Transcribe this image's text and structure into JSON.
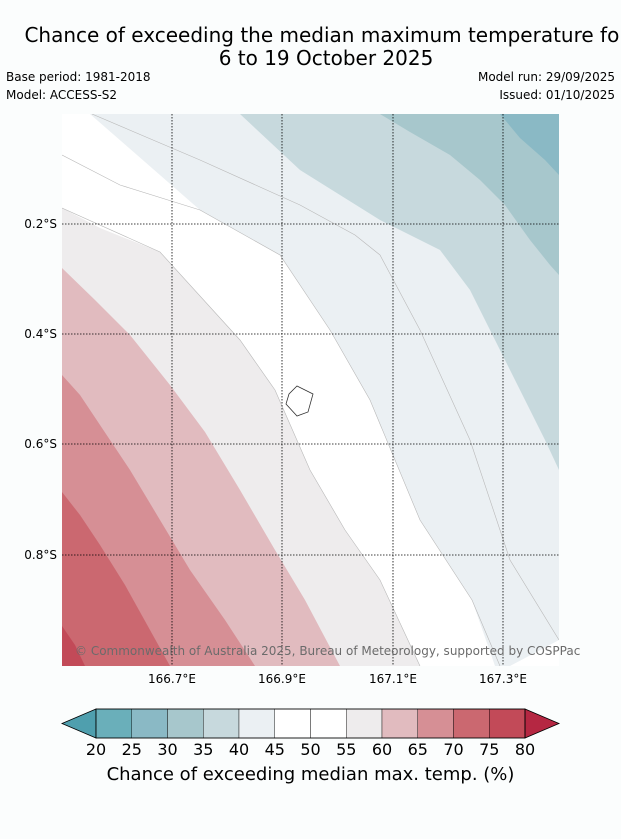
{
  "title": {
    "line1": "Chance of exceeding the median maximum temperature for",
    "line2": "6 to 19 October 2025"
  },
  "meta": {
    "base_period": "Base period: 1981-2018",
    "model": "Model: ACCESS-S2",
    "model_run": "Model run: 29/09/2025",
    "issued": "Issued: 01/10/2025"
  },
  "map": {
    "copyright": "© Commonwealth of Australia 2025, Bureau of Meteorology, supported by COSPPac",
    "lat_labels": [
      "0.2°S",
      "0.4°S",
      "0.6°S",
      "0.8°S"
    ],
    "lon_labels": [
      "166.7°E",
      "166.9°E",
      "167.1°E",
      "167.3°E"
    ],
    "extent": {
      "lon_min": 166.5,
      "lon_max": 167.4,
      "lat_min": -1.0,
      "lat_max": 0.0
    }
  },
  "colorbar": {
    "title": "Chance of exceeding median max. temp. (%)",
    "ticks": [
      "20",
      "25",
      "30",
      "35",
      "40",
      "45",
      "50",
      "55",
      "60",
      "65",
      "70",
      "75",
      "80"
    ],
    "colors": [
      "#6aafba",
      "#8ab9c5",
      "#a7c7cc",
      "#c7d9dd",
      "#ebf0f3",
      "#ffffff",
      "#ffffff",
      "#eeeced",
      "#e1bbbf",
      "#d68f95",
      "#cb6870",
      "#c24a58"
    ],
    "under_color": "#4f9fae",
    "over_color": "#b52742"
  }
}
